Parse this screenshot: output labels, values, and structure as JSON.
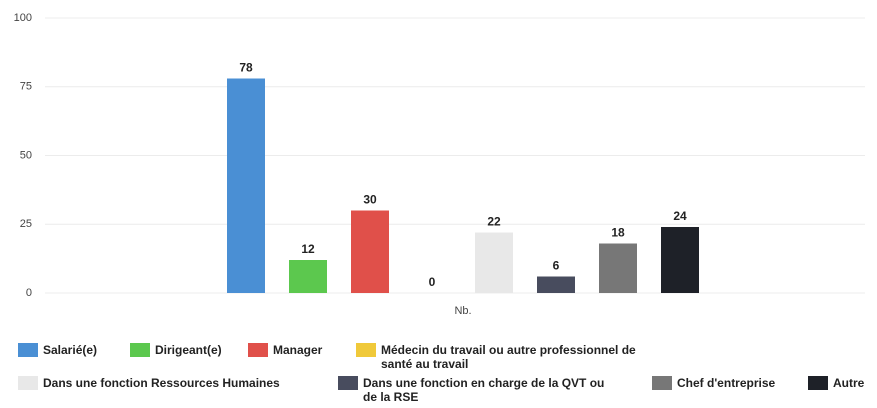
{
  "chart_data": {
    "type": "bar",
    "categories": [
      "Nb."
    ],
    "series": [
      {
        "name": "Salarié(e)",
        "color": "#4a8fd4",
        "values": [
          78
        ]
      },
      {
        "name": "Dirigeant(e)",
        "color": "#5cc84e",
        "values": [
          12
        ]
      },
      {
        "name": "Manager",
        "color": "#e0504a",
        "values": [
          30
        ]
      },
      {
        "name": "Médecin du travail ou autre professionnel de santé au travail",
        "color": "#f0c93a",
        "values": [
          0
        ]
      },
      {
        "name": "Dans une fonction Ressources Humaines",
        "color": "#e8e8e8",
        "values": [
          22
        ]
      },
      {
        "name": "Dans une fonction en charge de la QVT ou de la RSE",
        "color": "#484c5e",
        "values": [
          6
        ]
      },
      {
        "name": "Chef d'entreprise",
        "color": "#777777",
        "values": [
          18
        ]
      },
      {
        "name": "Autre",
        "color": "#1e2128",
        "values": [
          24
        ]
      }
    ],
    "ylim": [
      0,
      100
    ],
    "yticks": [
      0,
      25,
      50,
      75,
      100
    ],
    "grid": true,
    "legend": "bottom"
  }
}
